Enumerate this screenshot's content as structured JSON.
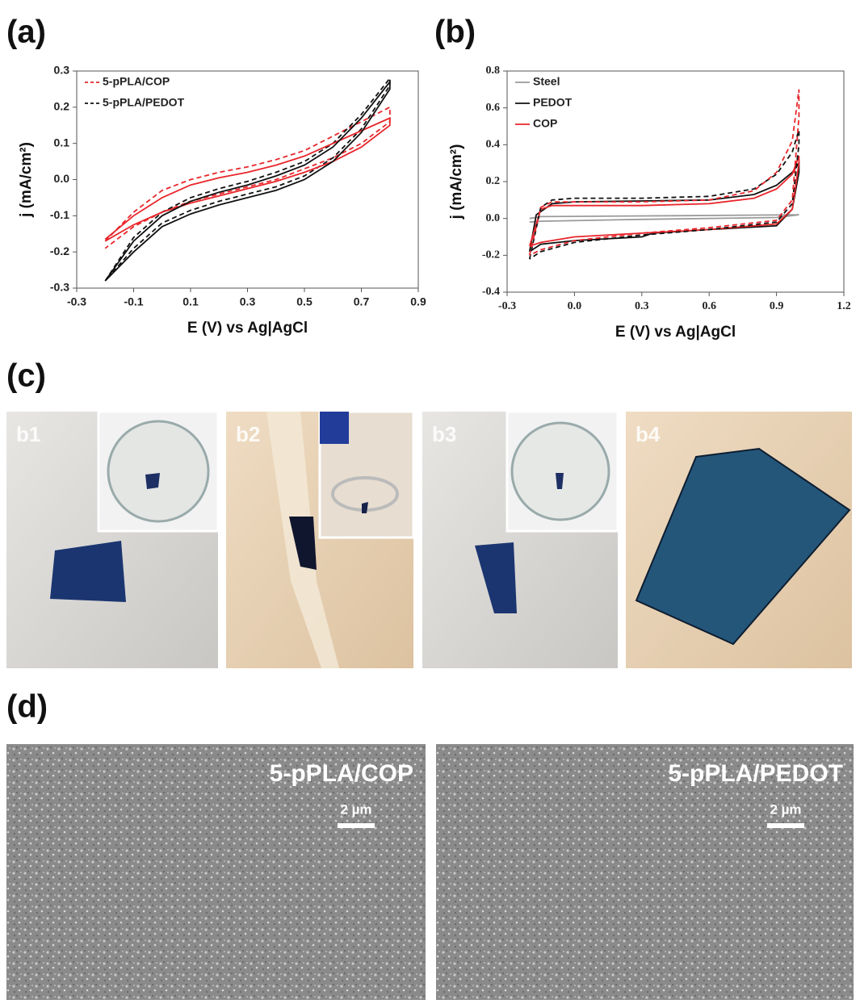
{
  "panel_labels": [
    "(a)",
    "(b)",
    "(c)",
    "(d)"
  ],
  "chart_data": [
    {
      "type": "line",
      "xlabel": "E (V) vs Ag|AgCl",
      "ylabel": "j (mA/cm²)",
      "xlim": [
        -0.3,
        0.9
      ],
      "xticks": [
        -0.3,
        -0.1,
        0.1,
        0.3,
        0.5,
        0.7,
        0.9
      ],
      "ylim": [
        -0.3,
        0.3
      ],
      "yticks": [
        -0.3,
        -0.2,
        -0.1,
        {
          "value": 0,
          "label": "0.0"
        },
        0.1,
        0.2,
        0.3
      ],
      "legend": "upper left",
      "series": [
        {
          "name": "5-pPLA/COP",
          "color": "#e8262b",
          "linestyle": "dashed",
          "x": [
            -0.2,
            -0.1,
            0,
            0.1,
            0.2,
            0.3,
            0.4,
            0.5,
            0.6,
            0.7,
            0.8,
            0.8,
            0.7,
            0.6,
            0.5,
            0.4,
            0.3,
            0.2,
            0.1,
            0,
            -0.1,
            -0.2
          ],
          "values": [
            -0.17,
            -0.09,
            -0.03,
            0.0,
            0.02,
            0.035,
            0.055,
            0.08,
            0.12,
            0.16,
            0.2,
            0.16,
            0.1,
            0.06,
            0.03,
            0.0,
            -0.02,
            -0.04,
            -0.06,
            -0.09,
            -0.13,
            -0.19
          ]
        },
        {
          "name": "5-pPLA/PEDOT",
          "color": "#111111",
          "linestyle": "dashed",
          "x": [
            -0.2,
            -0.1,
            0,
            0.1,
            0.2,
            0.3,
            0.4,
            0.5,
            0.6,
            0.7,
            0.8,
            0.8,
            0.7,
            0.6,
            0.5,
            0.4,
            0.3,
            0.2,
            0.1,
            0,
            -0.1,
            -0.2
          ],
          "values": [
            -0.28,
            -0.16,
            -0.09,
            -0.05,
            -0.025,
            -0.005,
            0.02,
            0.05,
            0.1,
            0.18,
            0.28,
            0.26,
            0.14,
            0.06,
            0.01,
            -0.02,
            -0.04,
            -0.06,
            -0.085,
            -0.12,
            -0.19,
            -0.28
          ]
        },
        {
          "color": "#e8262b",
          "linestyle": "solid",
          "x": [
            -0.2,
            -0.1,
            0,
            0.1,
            0.2,
            0.3,
            0.4,
            0.5,
            0.6,
            0.7,
            0.8,
            0.8,
            0.7,
            0.6,
            0.5,
            0.4,
            0.3,
            0.2,
            0.1,
            0,
            -0.1,
            -0.2
          ],
          "values": [
            -0.165,
            -0.1,
            -0.05,
            -0.015,
            0.005,
            0.02,
            0.04,
            0.065,
            0.1,
            0.135,
            0.17,
            0.15,
            0.09,
            0.05,
            0.02,
            -0.005,
            -0.025,
            -0.045,
            -0.065,
            -0.09,
            -0.125,
            -0.17
          ]
        },
        {
          "color": "#111111",
          "linestyle": "solid",
          "x": [
            -0.2,
            -0.1,
            0,
            0.1,
            0.2,
            0.3,
            0.4,
            0.5,
            0.6,
            0.7,
            0.8,
            0.8,
            0.7,
            0.6,
            0.5,
            0.4,
            0.3,
            0.2,
            0.1,
            0,
            -0.1,
            -0.2
          ],
          "values": [
            -0.28,
            -0.17,
            -0.1,
            -0.06,
            -0.035,
            -0.015,
            0.01,
            0.04,
            0.09,
            0.17,
            0.27,
            0.25,
            0.13,
            0.05,
            0.0,
            -0.03,
            -0.05,
            -0.07,
            -0.095,
            -0.13,
            -0.2,
            -0.28
          ]
        }
      ]
    },
    {
      "type": "line",
      "xlabel": "E (V) vs Ag|AgCl",
      "ylabel": "j (mA/cm²)",
      "xlim": [
        -0.3,
        1.2
      ],
      "xticks": [
        -0.3,
        {
          "value": 0,
          "label": "0.0"
        },
        0.3,
        0.6,
        0.9,
        1.2
      ],
      "ylim": [
        -0.4,
        0.8
      ],
      "yticks": [
        -0.4,
        -0.2,
        {
          "value": 0,
          "label": "0.0"
        },
        0.2,
        0.4,
        0.6,
        0.8
      ],
      "legend": "upper left",
      "series": [
        {
          "name": "Steel",
          "color": "#9a9a9a",
          "linestyle": "solid",
          "x": [
            -0.2,
            -0.15,
            0.5,
            1.0,
            1.0,
            0.9,
            0.3,
            -0.15,
            -0.2
          ],
          "values": [
            0.0,
            0.01,
            0.015,
            0.02,
            0.02,
            0.005,
            -0.005,
            -0.015,
            -0.02
          ]
        },
        {
          "name": "PEDOT",
          "color": "#111111",
          "linestyle": "solid",
          "x": [
            -0.2,
            -0.17,
            -0.1,
            0,
            0.3,
            0.6,
            0.8,
            0.9,
            0.97,
            1.0,
            1.0,
            0.97,
            0.9,
            0.6,
            0.35,
            0.3,
            0,
            -0.15,
            -0.2
          ],
          "values": [
            -0.18,
            0.02,
            0.08,
            0.09,
            0.095,
            0.1,
            0.13,
            0.18,
            0.25,
            0.3,
            0.25,
            0.05,
            -0.04,
            -0.06,
            -0.08,
            -0.1,
            -0.12,
            -0.14,
            -0.18
          ]
        },
        {
          "name": "COP",
          "color": "#e8262b",
          "linestyle": "solid",
          "x": [
            -0.2,
            -0.15,
            -0.1,
            0,
            0.3,
            0.6,
            0.8,
            0.9,
            0.97,
            1.0,
            1.0,
            0.97,
            0.9,
            0.6,
            0.3,
            0,
            -0.15,
            -0.2
          ],
          "values": [
            -0.15,
            0.05,
            0.07,
            0.07,
            0.07,
            0.08,
            0.11,
            0.16,
            0.24,
            0.34,
            0.3,
            0.05,
            -0.03,
            -0.06,
            -0.08,
            -0.1,
            -0.13,
            -0.15
          ]
        },
        {
          "color": "#111111",
          "linestyle": "dashed",
          "x": [
            -0.2,
            -0.15,
            -0.1,
            0,
            0.3,
            0.6,
            0.8,
            0.9,
            0.97,
            1.0,
            1.0,
            0.97,
            0.9,
            0.6,
            0.3,
            0,
            -0.15,
            -0.2
          ],
          "values": [
            -0.22,
            0.06,
            0.1,
            0.11,
            0.11,
            0.12,
            0.16,
            0.24,
            0.36,
            0.48,
            0.4,
            0.08,
            -0.02,
            -0.06,
            -0.09,
            -0.13,
            -0.18,
            -0.22
          ]
        },
        {
          "color": "#e8262b",
          "linestyle": "dashed",
          "x": [
            -0.2,
            -0.15,
            -0.1,
            0,
            0.3,
            0.6,
            0.8,
            0.9,
            0.97,
            1.0,
            1.0,
            0.97,
            0.9,
            0.6,
            0.3,
            0,
            -0.15,
            -0.2
          ],
          "values": [
            -0.2,
            0.06,
            0.09,
            0.09,
            0.09,
            0.1,
            0.15,
            0.25,
            0.42,
            0.7,
            0.55,
            0.1,
            -0.01,
            -0.05,
            -0.08,
            -0.12,
            -0.17,
            -0.2
          ]
        }
      ]
    }
  ],
  "photos": [
    {
      "label": "b1"
    },
    {
      "label": "b2"
    },
    {
      "label": "b3"
    },
    {
      "label": "b4"
    }
  ],
  "sem": [
    {
      "label": "5-pPLA/COP",
      "scale": "2 µm"
    },
    {
      "label": "5-pPLA/PEDOT",
      "scale": "2 µm"
    }
  ]
}
